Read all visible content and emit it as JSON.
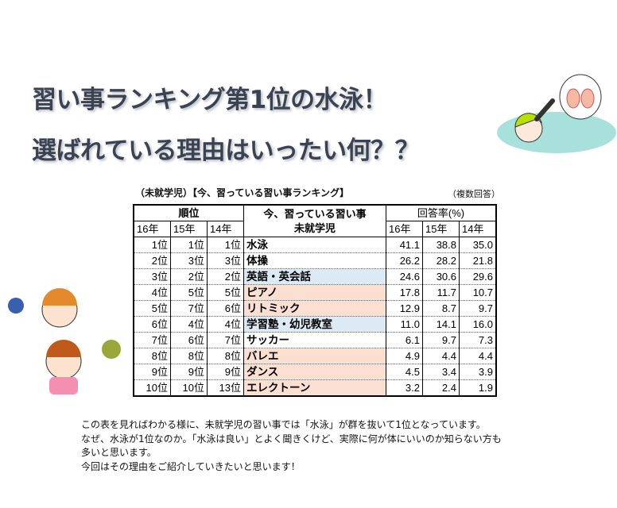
{
  "title": {
    "line1": "習い事ランキング第1位の水泳！",
    "line2": "選ばれている理由はいったい何？？"
  },
  "table": {
    "caption": "（未就学児）【今、習っている習い事ランキング】",
    "note": "（複数回答）",
    "header": {
      "rank": "順位",
      "activity": "今、習っている習い事",
      "activity_sub": "未就学児",
      "rate": "回答率(%)",
      "years": [
        "16年",
        "15年",
        "14年"
      ]
    },
    "rows": [
      {
        "r16": "1位",
        "r15": "1位",
        "r14": "1位",
        "name": "水泳",
        "p16": "41.1",
        "p15": "38.8",
        "p14": "35.0",
        "bg": "#ffffff"
      },
      {
        "r16": "2位",
        "r15": "3位",
        "r14": "3位",
        "name": "体操",
        "p16": "26.2",
        "p15": "28.2",
        "p14": "21.8",
        "bg": "#ffffff"
      },
      {
        "r16": "3位",
        "r15": "2位",
        "r14": "2位",
        "name": "英語・英会話",
        "p16": "24.6",
        "p15": "30.6",
        "p14": "29.6",
        "bg": "#dbeaf5"
      },
      {
        "r16": "4位",
        "r15": "5位",
        "r14": "5位",
        "name": "ピアノ",
        "p16": "17.8",
        "p15": "11.7",
        "p14": "10.7",
        "bg": "#fbe0d2"
      },
      {
        "r16": "5位",
        "r15": "7位",
        "r14": "6位",
        "name": "リトミック",
        "p16": "12.9",
        "p15": "8.7",
        "p14": "9.7",
        "bg": "#fbe0d2"
      },
      {
        "r16": "6位",
        "r15": "4位",
        "r14": "4位",
        "name": "学習塾・幼児教室",
        "p16": "11.0",
        "p15": "14.1",
        "p14": "16.0",
        "bg": "#dbeaf5"
      },
      {
        "r16": "7位",
        "r15": "6位",
        "r14": "7位",
        "name": "サッカー",
        "p16": "6.1",
        "p15": "9.7",
        "p14": "7.3",
        "bg": "#ffffff"
      },
      {
        "r16": "8位",
        "r15": "8位",
        "r14": "8位",
        "name": "バレエ",
        "p16": "4.9",
        "p15": "4.4",
        "p14": "4.4",
        "bg": "#fbe0d2"
      },
      {
        "r16": "9位",
        "r15": "9位",
        "r14": "9位",
        "name": "ダンス",
        "p16": "4.5",
        "p15": "3.4",
        "p14": "3.9",
        "bg": "#fbe0d2"
      },
      {
        "r16": "10位",
        "r15": "10位",
        "r14": "13位",
        "name": "エレクトーン",
        "p16": "3.2",
        "p15": "2.4",
        "p14": "1.9",
        "bg": "#fbe0d2"
      }
    ]
  },
  "body": {
    "lines": [
      "この表を見ればわかる様に、未就学児の習い事では「水泳」が群を抜いて1位となっています。",
      "なぜ、水泳が1位なのか。「水泳は良い」とよく聞きくけど、実際に何が体にいいのか知らない方も",
      "多いと思います。",
      "今回はその理由をご紹介していきたいと思います！"
    ]
  },
  "colors": {
    "title": "#3b4352",
    "row_blue": "#dbeaf5",
    "row_peach": "#fbe0d2",
    "water": "#a8e0dc"
  },
  "illustrations": [
    "swimmer-illustration",
    "children-illustration"
  ]
}
